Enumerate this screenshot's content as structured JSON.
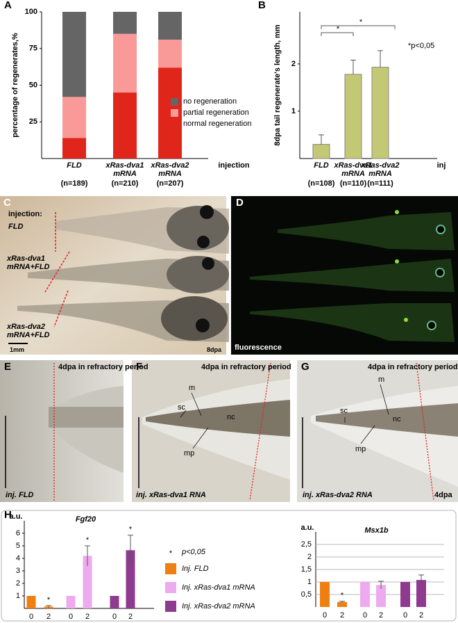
{
  "chart_data": [
    {
      "type": "stacked_bar",
      "panel": "A",
      "y_label": "percentage of regenerates,%",
      "x_label": "injection",
      "categories": [
        "FLD",
        "xRas-dva1 mRNA",
        "xRas-dva2 mRNA"
      ],
      "sample_sizes": [
        "(n=189)",
        "(n=210)",
        "(n=207)"
      ],
      "series": [
        {
          "name": "normal regeneration",
          "color": "#e0261a",
          "values": [
            14,
            45,
            62
          ]
        },
        {
          "name": "partial regeneration",
          "color": "#f99a98",
          "values": [
            28,
            40,
            19
          ]
        },
        {
          "name": "no regeneration",
          "color": "#656565",
          "values": [
            58,
            15,
            19
          ]
        }
      ],
      "ylim": [
        0,
        100
      ],
      "yticks": [
        25,
        50,
        75,
        100
      ]
    },
    {
      "type": "bar",
      "panel": "B",
      "y_label": "8dpa tail regenerate's length, mm",
      "x_label": "inj",
      "categories": [
        "FLD",
        "xRas-dva1 mRNA",
        "xRas-dva2 mRNA"
      ],
      "sample_sizes": [
        "(n=108)",
        "(n=110)",
        "(n=111)"
      ],
      "values": [
        0.3,
        1.78,
        1.93
      ],
      "errors": [
        0.2,
        0.3,
        0.35
      ],
      "color": "#c3c874",
      "annotations": [
        "*",
        "*",
        "*p<0,05"
      ],
      "ylim": [
        0,
        3.1
      ],
      "yticks": [
        1,
        2
      ]
    },
    {
      "type": "grouped_bar",
      "title": "Fgf20",
      "y_label": "a.u.",
      "categories": [
        "0",
        "2"
      ],
      "series": [
        {
          "name": "Inj. FLD",
          "color": "#f07f12",
          "values": [
            1,
            0.15
          ],
          "errors": [
            null,
            0.08
          ],
          "stars": [
            null,
            "*"
          ]
        },
        {
          "name": "Inj. xRas-dva1 mRNA",
          "color": "#eeaaee",
          "values": [
            1,
            4.2
          ],
          "errors": [
            null,
            0.8
          ],
          "stars": [
            null,
            "*"
          ]
        },
        {
          "name": "Inj. xRas-dva2 mRNA",
          "color": "#8e3a8e",
          "values": [
            1,
            4.65
          ],
          "errors": [
            null,
            1.2
          ],
          "stars": [
            null,
            "*"
          ]
        }
      ],
      "legend_note": {
        "symbol": "*",
        "text": "p<0,05"
      },
      "ylim": [
        0,
        7
      ],
      "yticks": [
        1,
        2,
        3,
        4,
        5,
        6
      ],
      "grid": false
    },
    {
      "type": "grouped_bar",
      "title": "Msx1b",
      "y_label": "a.u.",
      "categories": [
        "0",
        "2"
      ],
      "series": [
        {
          "color": "#f07f12",
          "values": [
            1,
            0.2
          ],
          "errors": [
            null,
            0.03
          ],
          "stars": [
            null,
            "*"
          ]
        },
        {
          "color": "#eeaaee",
          "values": [
            1,
            0.88
          ],
          "errors": [
            null,
            0.15
          ],
          "stars": [
            null,
            null
          ]
        },
        {
          "color": "#8e3a8e",
          "values": [
            1,
            1.08
          ],
          "errors": [
            null,
            0.2
          ],
          "stars": [
            null,
            null
          ]
        }
      ],
      "ylim": [
        0,
        3
      ],
      "yticks": [
        {
          "value": 0.5,
          "label": "0,5"
        },
        1,
        {
          "value": 1.5,
          "label": "1,5"
        },
        2,
        {
          "value": 2.5,
          "label": "2,5"
        }
      ],
      "grid": true
    }
  ],
  "photos": {
    "C": {
      "panel": "C",
      "injection": "injection:",
      "groups": [
        "FLD",
        "xRas-dva1 mRNA+FLD",
        "xRas-dva2 mRNA+FLD"
      ],
      "scale": "1mm",
      "stage": "8dpa"
    },
    "D": {
      "panel": "D",
      "caption": "fluorescence"
    },
    "E": {
      "panel": "E",
      "header": "4dpa in refractory period",
      "caption": "inj. FLD"
    },
    "F": {
      "panel": "F",
      "header": "4dpa in refractory period",
      "labels": [
        "sc",
        "m",
        "nc",
        "mp"
      ],
      "caption": "inj. xRas-dva1 RNA"
    },
    "G": {
      "panel": "G",
      "header": "4dpa in refractory period",
      "labels": [
        "m",
        "sc",
        "nc",
        "mp"
      ],
      "caption": "inj. xRas-dva2 RNA",
      "stage": "4dpa"
    },
    "H": {
      "panel": "H"
    }
  }
}
